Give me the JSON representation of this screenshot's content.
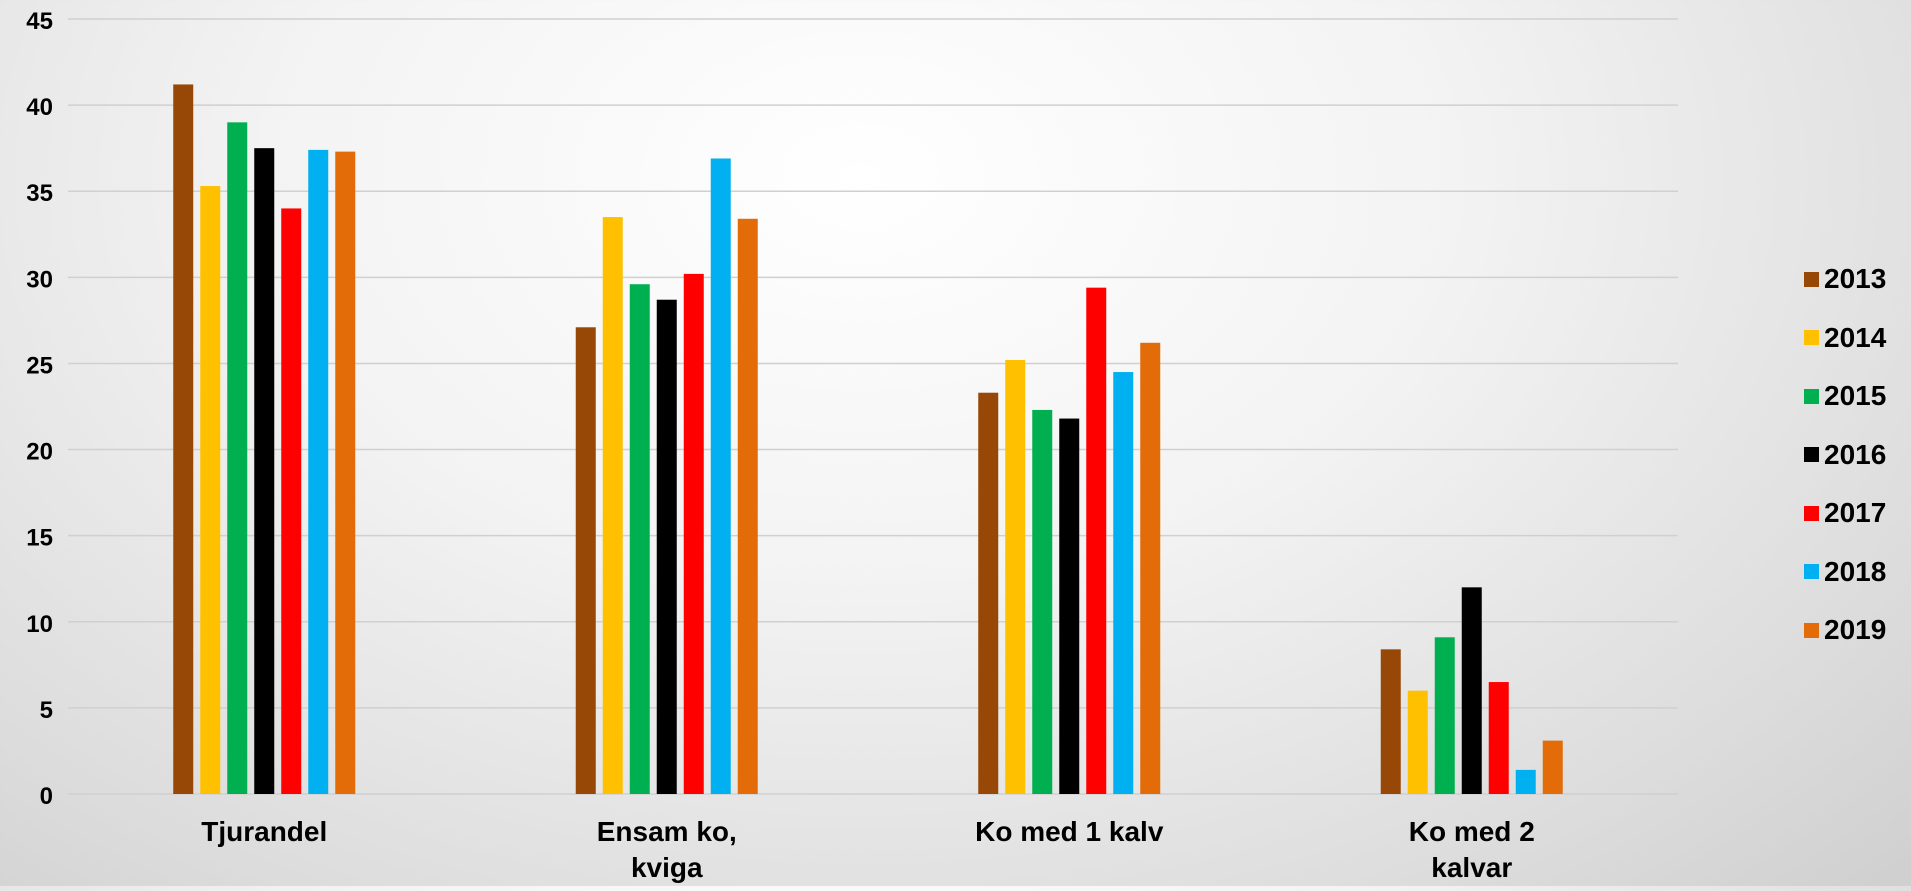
{
  "chart_data": {
    "type": "bar",
    "title": "",
    "xlabel": "",
    "ylabel": "",
    "ylim": [
      0,
      45
    ],
    "yticks": [
      "0",
      "5",
      "10",
      "15",
      "20",
      "25",
      "30",
      "35",
      "40",
      "45"
    ],
    "grid": true,
    "legend_position": "right",
    "categories": [
      [
        "Tjurandel"
      ],
      [
        "Ensam ko,",
        "kviga"
      ],
      [
        "Ko med 1 kalv"
      ],
      [
        "Ko med 2",
        "kalvar"
      ]
    ],
    "series": [
      {
        "name": "2013",
        "color": "#974706",
        "values": [
          41.2,
          27.1,
          23.3,
          8.4
        ]
      },
      {
        "name": "2014",
        "color": "#FFC000",
        "values": [
          35.3,
          33.5,
          25.2,
          6.0
        ]
      },
      {
        "name": "2015",
        "color": "#00B050",
        "values": [
          39.0,
          29.6,
          22.3,
          9.1
        ]
      },
      {
        "name": "2016",
        "color": "#000000",
        "values": [
          37.5,
          28.7,
          21.8,
          12.0
        ]
      },
      {
        "name": "2017",
        "color": "#FF0000",
        "values": [
          34.0,
          30.2,
          29.4,
          6.5
        ]
      },
      {
        "name": "2018",
        "color": "#00B0F0",
        "values": [
          37.4,
          36.9,
          24.5,
          1.4
        ]
      },
      {
        "name": "2019",
        "color": "#E36C09",
        "values": [
          37.3,
          33.4,
          26.2,
          3.1
        ]
      }
    ]
  }
}
